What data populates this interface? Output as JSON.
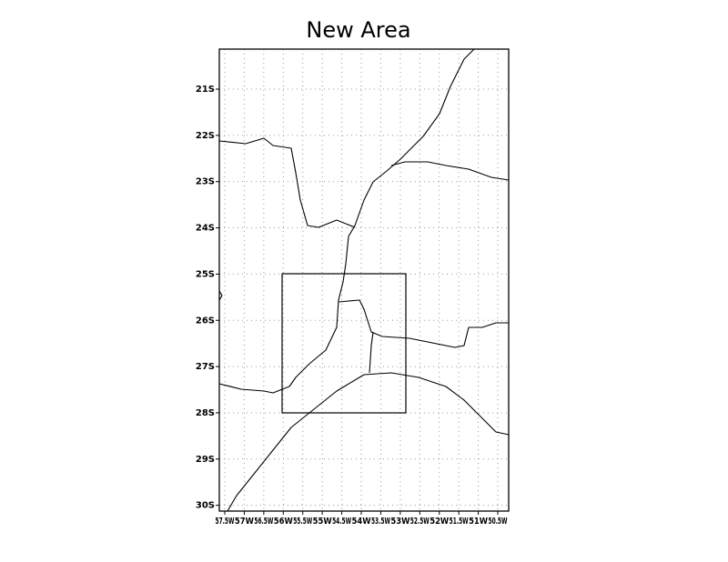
{
  "title": "New Area",
  "lat_labels": [
    "21S",
    "22S",
    "23S",
    "24S",
    "25S",
    "26S",
    "27S",
    "28S",
    "29S",
    "30S"
  ],
  "lon_labels": [
    "57.5W",
    "57W",
    "56.5W",
    "56W",
    "55.5W",
    "55W",
    "54.5W",
    "54W",
    "53.5W",
    "53W",
    "52.5W",
    "52W",
    "51.5W",
    "51W",
    "50.5W"
  ]
}
